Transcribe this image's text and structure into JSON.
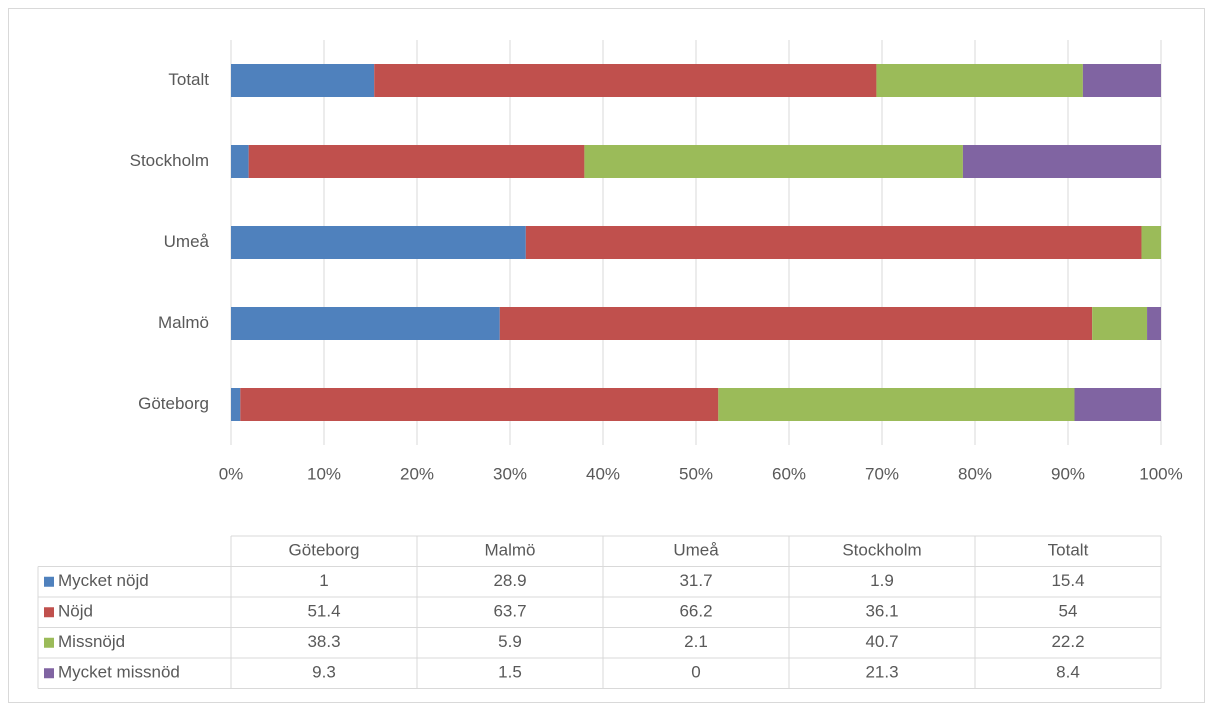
{
  "chart_data": {
    "type": "bar",
    "orientation": "horizontal",
    "stacked": true,
    "categories": [
      "Göteborg",
      "Malmö",
      "Umeå",
      "Stockholm",
      "Totalt"
    ],
    "series": [
      {
        "name": "Mycket nöjd",
        "color": "#4f81bd",
        "values": [
          1,
          28.9,
          31.7,
          1.9,
          15.4
        ]
      },
      {
        "name": "Nöjd",
        "color": "#c0504d",
        "values": [
          51.4,
          63.7,
          66.2,
          36.1,
          54
        ]
      },
      {
        "name": "Missnöjd",
        "color": "#9bbb59",
        "values": [
          38.3,
          5.9,
          2.1,
          40.7,
          22.2
        ]
      },
      {
        "name": "Mycket missnöd",
        "color": "#8064a2",
        "values": [
          9.3,
          1.5,
          0,
          21.3,
          8.4
        ]
      }
    ],
    "xlim": [
      0,
      100
    ],
    "xticks": [
      {
        "value": 0,
        "label": "0%"
      },
      {
        "value": 10,
        "label": "10%"
      },
      {
        "value": 20,
        "label": "20%"
      },
      {
        "value": 30,
        "label": "30%"
      },
      {
        "value": 40,
        "label": "40%"
      },
      {
        "value": 50,
        "label": "50%"
      },
      {
        "value": 60,
        "label": "60%"
      },
      {
        "value": 70,
        "label": "70%"
      },
      {
        "value": 80,
        "label": "80%"
      },
      {
        "value": 90,
        "label": "90%"
      },
      {
        "value": 100,
        "label": "100%"
      }
    ],
    "grid": true,
    "data_table": true
  }
}
